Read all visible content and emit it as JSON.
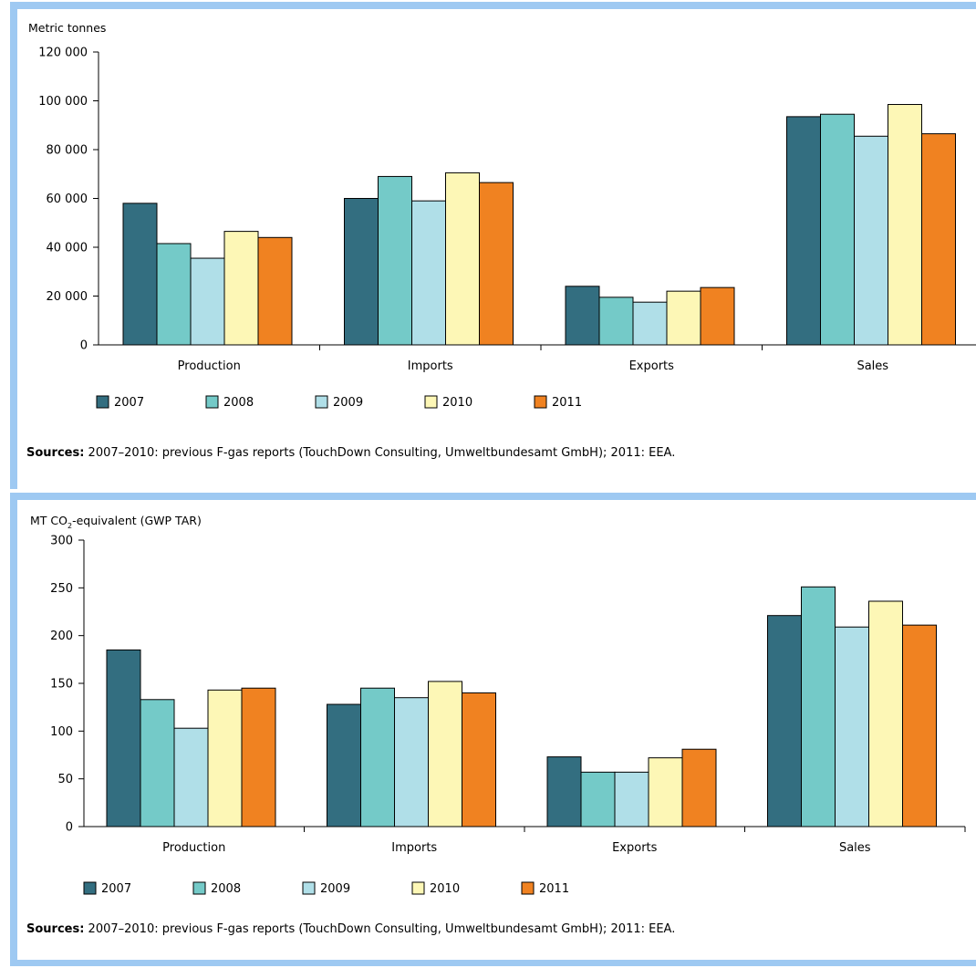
{
  "colors": {
    "frame": "#9ec9f2",
    "series": [
      "#336e80",
      "#74cac8",
      "#b0dfe8",
      "#fdf7b6",
      "#f08221"
    ]
  },
  "chart_data": [
    {
      "type": "bar",
      "ylabel": "Metric tonnes",
      "ylim": [
        0,
        120000
      ],
      "yticks": [
        0,
        20000,
        40000,
        60000,
        80000,
        100000,
        120000
      ],
      "ytick_labels": [
        "0",
        "20 000",
        "40 000",
        "60 000",
        "80 000",
        "100 000",
        "120 000"
      ],
      "categories": [
        "Production",
        "Imports",
        "Exports",
        "Sales"
      ],
      "series": [
        {
          "name": "2007",
          "values": [
            58000,
            60000,
            24000,
            93500
          ]
        },
        {
          "name": "2008",
          "values": [
            41500,
            69000,
            19500,
            94500
          ]
        },
        {
          "name": "2009",
          "values": [
            35500,
            59000,
            17500,
            85500
          ]
        },
        {
          "name": "2010",
          "values": [
            46500,
            70500,
            22000,
            98500
          ]
        },
        {
          "name": "2011",
          "values": [
            44000,
            66500,
            23500,
            86500
          ]
        }
      ],
      "legend_position": "bottom",
      "source_label": "Sources:",
      "source_text": " 2007–2010: previous F-gas reports (TouchDown Consulting, Umweltbundesamt GmbH); 2011: EEA."
    },
    {
      "type": "bar",
      "ylabel": "MT CO",
      "ylabel_sub": "2",
      "ylabel_suffix": "-equivalent (GWP TAR)",
      "ylim": [
        0,
        300
      ],
      "yticks": [
        0,
        50,
        100,
        150,
        200,
        250,
        300
      ],
      "ytick_labels": [
        "0",
        "50",
        "100",
        "150",
        "200",
        "250",
        "300"
      ],
      "categories": [
        "Production",
        "Imports",
        "Exports",
        "Sales"
      ],
      "series": [
        {
          "name": "2007",
          "values": [
            185,
            128,
            73,
            221
          ]
        },
        {
          "name": "2008",
          "values": [
            133,
            145,
            57,
            251
          ]
        },
        {
          "name": "2009",
          "values": [
            103,
            135,
            57,
            209
          ]
        },
        {
          "name": "2010",
          "values": [
            143,
            152,
            72,
            236
          ]
        },
        {
          "name": "2011",
          "values": [
            145,
            140,
            81,
            211
          ]
        }
      ],
      "legend_position": "bottom",
      "source_label": "Sources:",
      "source_text": " 2007–2010: previous F-gas reports (TouchDown Consulting, Umweltbundesamt GmbH); 2011: EEA."
    }
  ]
}
